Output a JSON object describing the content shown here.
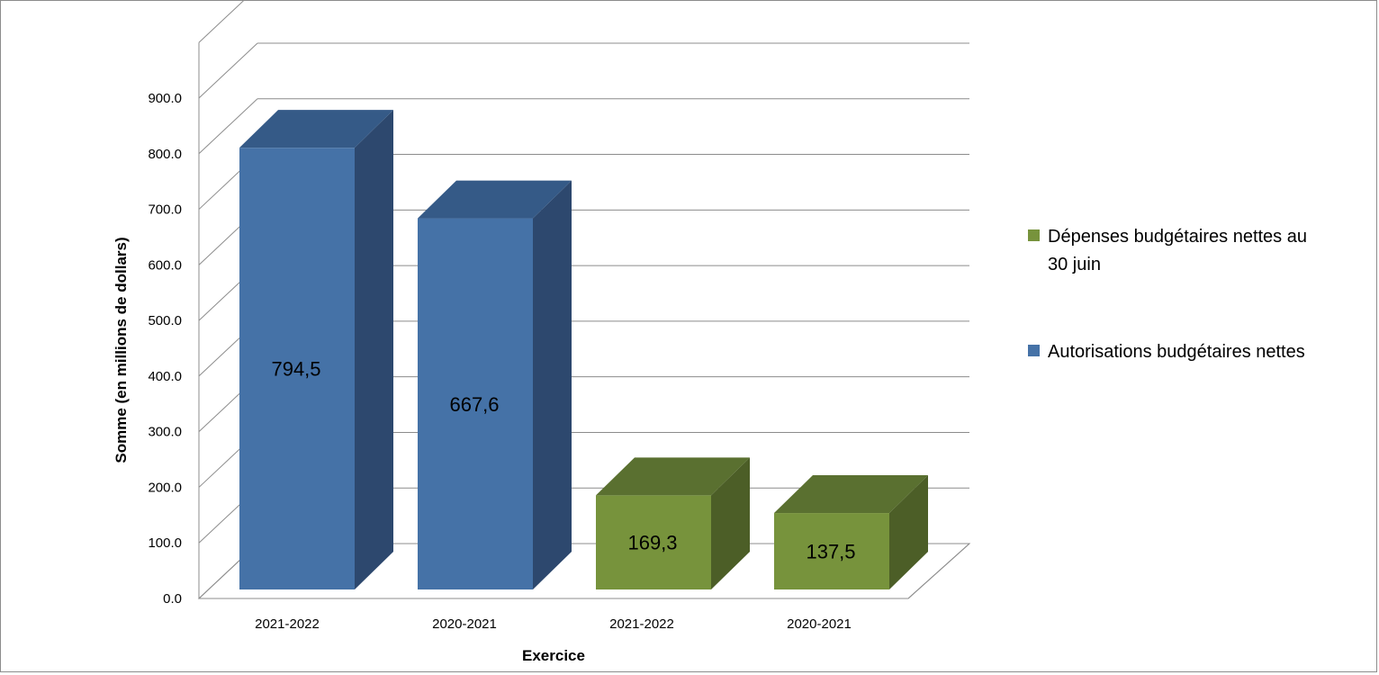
{
  "chart_data": {
    "type": "bar",
    "categories": [
      "2021-2022",
      "2020-2021",
      "2021-2022",
      "2020-2021"
    ],
    "values": [
      794.5,
      667.6,
      169.3,
      137.5
    ],
    "data_labels": [
      "794,5",
      "667,6",
      "169,3",
      "137,5"
    ],
    "bar_series": [
      1,
      1,
      0,
      0
    ],
    "series": [
      {
        "name": "Dépenses budgétaires nettes au 30  juin",
        "legend_lines": [
          "Dépenses budgétaires nettes au",
          "30  juin"
        ],
        "color": "#77933c",
        "top_color": "#5a7030",
        "side_color": "#4c5e27"
      },
      {
        "name": "Autorisations budgétaires nettes",
        "legend_lines": [
          "Autorisations budgétaires nettes"
        ],
        "color": "#4572a7",
        "top_color": "#355a87",
        "side_color": "#2d486e"
      }
    ],
    "y_ticks": [
      "0.0",
      "100.0",
      "200.0",
      "300.0",
      "400.0",
      "500.0",
      "600.0",
      "700.0",
      "800.0",
      "900.0"
    ],
    "ylim": [
      0,
      900
    ],
    "xlabel": "Exercice",
    "ylabel": "Somme (en millions de dollars)",
    "grid": true,
    "legend_position": "right",
    "three_d": true
  }
}
